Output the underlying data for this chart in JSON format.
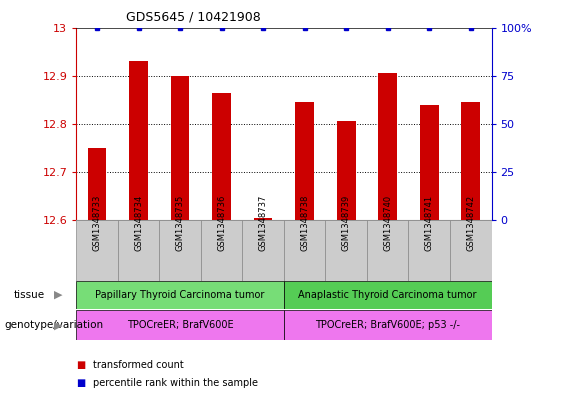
{
  "title": "GDS5645 / 10421908",
  "samples": [
    "GSM1348733",
    "GSM1348734",
    "GSM1348735",
    "GSM1348736",
    "GSM1348737",
    "GSM1348738",
    "GSM1348739",
    "GSM1348740",
    "GSM1348741",
    "GSM1348742"
  ],
  "transformed_counts": [
    12.75,
    12.93,
    12.9,
    12.865,
    12.605,
    12.845,
    12.805,
    12.905,
    12.84,
    12.845
  ],
  "percentile_ranks": [
    100,
    100,
    100,
    100,
    100,
    100,
    100,
    100,
    100,
    100
  ],
  "bar_color": "#cc0000",
  "dot_color": "#0000cc",
  "ylim_left": [
    12.6,
    13.0
  ],
  "ylim_right": [
    0,
    100
  ],
  "yticks_left": [
    12.6,
    12.7,
    12.8,
    12.9,
    13.0
  ],
  "yticks_right": [
    0,
    25,
    50,
    75,
    100
  ],
  "ytick_labels_left": [
    "12.6",
    "12.7",
    "12.8",
    "12.9",
    "13"
  ],
  "ytick_labels_right": [
    "0",
    "25",
    "50",
    "75",
    "100%"
  ],
  "grid_ticks": [
    12.7,
    12.8,
    12.9
  ],
  "tissue_groups": [
    {
      "label": "Papillary Thyroid Carcinoma tumor",
      "start": 0,
      "end": 5,
      "color": "#77dd77"
    },
    {
      "label": "Anaplastic Thyroid Carcinoma tumor",
      "start": 5,
      "end": 10,
      "color": "#55cc55"
    }
  ],
  "genotype_groups": [
    {
      "label": "TPOCreER; BrafV600E",
      "start": 0,
      "end": 5,
      "color": "#ee77ee"
    },
    {
      "label": "TPOCreER; BrafV600E; p53 -/-",
      "start": 5,
      "end": 10,
      "color": "#ee77ee"
    }
  ],
  "tissue_label": "tissue",
  "genotype_label": "genotype/variation",
  "legend_items": [
    {
      "color": "#cc0000",
      "label": "transformed count"
    },
    {
      "color": "#0000cc",
      "label": "percentile rank within the sample"
    }
  ],
  "bar_width": 0.45,
  "axis_color_left": "#cc0000",
  "axis_color_right": "#0000cc",
  "background_color": "#ffffff",
  "sample_box_color": "#cccccc",
  "sample_box_edge": "#888888"
}
